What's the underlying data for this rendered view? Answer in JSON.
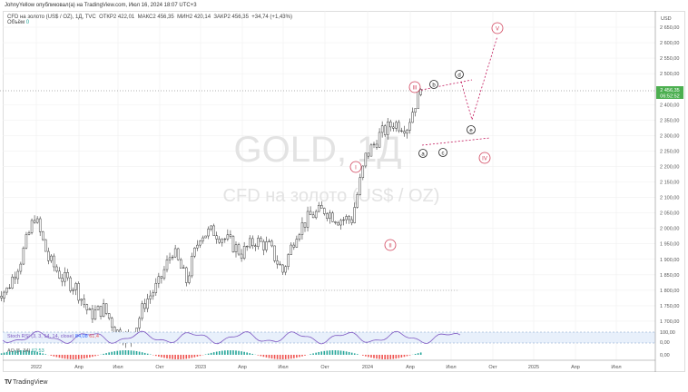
{
  "header": {
    "published": "JohnyYellow опубликовал(а) на TradingView.com, Июл 16, 2024 18:07 UTC+3"
  },
  "legend": {
    "symbol": "CFD на золото (US$ / OZ), 1Д, TVC",
    "open": "ОТКР2 422,01",
    "high": "МАКС2 456,35",
    "low": "МИН2 420,14",
    "close": "ЗАКР2 456,35",
    "change": "+34,74 (+1,43%)",
    "volume_label": "Объём",
    "volume_value": "0"
  },
  "watermark": {
    "title": "GOLD, 1Д",
    "subtitle": "CFD на золото (US$ / OZ)"
  },
  "price_axis": {
    "currency": "USD",
    "ticks": [
      "2 650,00",
      "2 600,00",
      "2 550,00",
      "2 500,00",
      "2 400,00",
      "2 350,00",
      "2 300,00",
      "2 250,00",
      "2 200,00",
      "2 150,00",
      "2 100,00",
      "2 050,00",
      "2 000,00",
      "1 950,00",
      "1 900,00",
      "1 850,00",
      "1 800,00",
      "1 750,00",
      "1 700,00"
    ],
    "last_price": "2 456,35",
    "countdown": "06:52:52",
    "indicator_ticks": [
      "100,00",
      "0,00",
      "0,00"
    ]
  },
  "time_axis": [
    "2022",
    "Апр",
    "Июл",
    "Окт",
    "2023",
    "Апр",
    "Июл",
    "Окт",
    "2024",
    "Апр",
    "Июл",
    "Окт",
    "2025",
    "Апр",
    "Июл"
  ],
  "indicators": {
    "stoch": "Stoch RSI (3, 3, 14, 14, close)",
    "stoch_k": "84,08",
    "stoch_d": "61,4",
    "ao": "AO (5, 34)",
    "ao_value": "62,53"
  },
  "waves": {
    "I": "I",
    "II": "II",
    "III": "III",
    "IV": "IV",
    "V": "V",
    "a": "a",
    "b": "b",
    "c": "c",
    "d": "d",
    "e": "e"
  },
  "colors": {
    "up": "#26a69a",
    "down": "#ef5350",
    "wave": "#d0415a",
    "stoch": "#7e57c2",
    "price_tag": "#4caf50"
  },
  "chart_data": {
    "type": "candlestick",
    "title": "GOLD, 1Д",
    "ylim": [
      1650,
      2700
    ],
    "x": [
      "2021-12",
      "2022-01",
      "2022-02",
      "2022-03",
      "2022-04",
      "2022-05",
      "2022-06",
      "2022-07",
      "2022-08",
      "2022-09",
      "2022-10",
      "2022-11",
      "2022-12",
      "2023-01",
      "2023-02",
      "2023-03",
      "2023-04",
      "2023-05",
      "2023-06",
      "2023-07",
      "2023-08",
      "2023-09",
      "2023-10",
      "2023-11",
      "2023-12",
      "2024-01",
      "2024-02",
      "2024-03",
      "2024-04",
      "2024-05",
      "2024-06",
      "2024-07"
    ],
    "close": [
      1790,
      1800,
      1900,
      2040,
      1900,
      1840,
      1810,
      1720,
      1740,
      1665,
      1640,
      1760,
      1820,
      1930,
      1830,
      1980,
      1990,
      1960,
      1920,
      1960,
      1940,
      1860,
      1990,
      2040,
      2060,
      2030,
      2030,
      2230,
      2300,
      2340,
      2330,
      2456
    ]
  },
  "brand": {
    "name": "TradingView"
  }
}
